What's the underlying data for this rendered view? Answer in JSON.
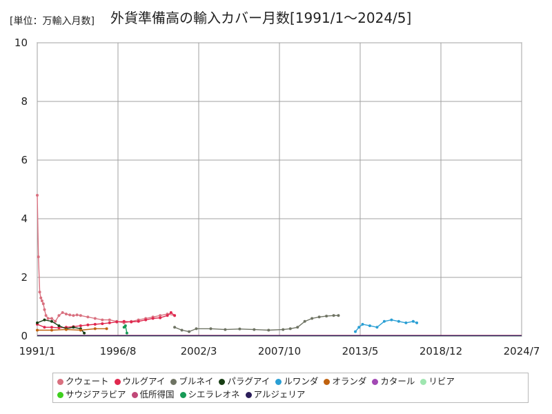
{
  "header": {
    "unit": "[単位：万輸入月数]",
    "title": "外貨準備高の輸入カバー月数[1991/1～2024/5]"
  },
  "chart_data": {
    "type": "line",
    "title": "外貨準備高の輸入カバー月数[1991/1～2024/5]",
    "ylabel": "[単位：万輸入月数]",
    "xlabel": "",
    "ylim": [
      0,
      10
    ],
    "yticks": [
      "0",
      "2",
      "4",
      "6",
      "8",
      "10"
    ],
    "xlim": [
      1991.0,
      2024.5
    ],
    "xticks": [
      {
        "label": "1991/1",
        "x": 1991.0
      },
      {
        "label": "1996/8",
        "x": 1996.583
      },
      {
        "label": "2002/3",
        "x": 2002.167
      },
      {
        "label": "2007/10",
        "x": 2007.75
      },
      {
        "label": "2013/5",
        "x": 2013.333
      },
      {
        "label": "2018/12",
        "x": 2018.917
      },
      {
        "label": "2024/7",
        "x": 2024.5
      }
    ],
    "grid": true,
    "legend_position": "bottom",
    "series": [
      {
        "name": "クウェート",
        "color": "#d9707f",
        "x": [
          1991.0,
          1991.08,
          1991.17,
          1991.25,
          1991.33,
          1991.42,
          1991.5,
          1991.6,
          1991.75,
          1992.0,
          1992.25,
          1992.5,
          1992.75,
          1993.0,
          1993.25,
          1993.5,
          1993.75,
          1994.0,
          1994.5,
          1995.0,
          1995.5,
          1996.0,
          1996.5,
          1997.0,
          1997.5,
          1998.0,
          1998.5,
          1999.0,
          1999.5,
          2000.0,
          2000.5
        ],
        "y": [
          4.8,
          2.7,
          1.5,
          1.3,
          1.2,
          1.1,
          0.9,
          0.7,
          0.6,
          0.6,
          0.5,
          0.7,
          0.8,
          0.75,
          0.72,
          0.7,
          0.72,
          0.7,
          0.65,
          0.6,
          0.55,
          0.55,
          0.5,
          0.45,
          0.5,
          0.55,
          0.6,
          0.65,
          0.7,
          0.75,
          0.7
        ]
      },
      {
        "name": "ウルグアイ",
        "color": "#e0284e",
        "x": [
          1991.0,
          1991.5,
          1992.0,
          1992.5,
          1993.0,
          1993.5,
          1994.0,
          1994.5,
          1995.0,
          1995.5,
          1996.0,
          1996.5,
          1997.0,
          1997.5,
          1998.0,
          1998.5,
          1999.0,
          1999.5,
          2000.0,
          2000.25,
          2000.5
        ],
        "y": [
          0.4,
          0.3,
          0.3,
          0.28,
          0.3,
          0.32,
          0.35,
          0.38,
          0.4,
          0.42,
          0.45,
          0.48,
          0.5,
          0.48,
          0.5,
          0.55,
          0.6,
          0.62,
          0.7,
          0.8,
          0.7
        ]
      },
      {
        "name": "ブルネイ",
        "color": "#6e7363",
        "x": [
          2000.5,
          2001.0,
          2001.5,
          2002.0,
          2003.0,
          2004.0,
          2005.0,
          2006.0,
          2007.0,
          2008.0,
          2008.5,
          2009.0,
          2009.5,
          2010.0,
          2010.5,
          2011.0,
          2011.5,
          2011.83
        ],
        "y": [
          0.3,
          0.2,
          0.15,
          0.25,
          0.25,
          0.22,
          0.24,
          0.22,
          0.2,
          0.22,
          0.25,
          0.3,
          0.5,
          0.6,
          0.65,
          0.68,
          0.7,
          0.7
        ]
      },
      {
        "name": "パラグアイ",
        "color": "#173d13",
        "x": [
          1991.0,
          1991.5,
          1992.0,
          1992.5,
          1993.0,
          1993.5,
          1994.0,
          1994.25
        ],
        "y": [
          0.45,
          0.55,
          0.5,
          0.35,
          0.25,
          0.3,
          0.25,
          0.1
        ]
      },
      {
        "name": "ルワンダ",
        "color": "#2a9fd4",
        "x": [
          2013.0,
          2013.25,
          2013.5,
          2014.0,
          2014.5,
          2015.0,
          2015.5,
          2016.0,
          2016.5,
          2017.0,
          2017.25
        ],
        "y": [
          0.15,
          0.3,
          0.4,
          0.35,
          0.3,
          0.5,
          0.55,
          0.5,
          0.45,
          0.5,
          0.45
        ]
      },
      {
        "name": "オランダ",
        "color": "#c0620f",
        "x": [
          1991.0,
          1992.0,
          1993.0,
          1994.0,
          1995.0,
          1995.8
        ],
        "y": [
          0.2,
          0.2,
          0.22,
          0.2,
          0.25,
          0.25
        ]
      },
      {
        "name": "カタール",
        "color": "#a248b4",
        "x": [
          1991.0,
          2024.5
        ],
        "y": [
          0.01,
          0.01
        ]
      },
      {
        "name": "リビア",
        "color": "#9fe6b0",
        "x": [
          1991.0,
          2024.5
        ],
        "y": [
          0.01,
          0.01
        ]
      },
      {
        "name": "サウジアラビア",
        "color": "#3fcf1f",
        "x": [
          1991.0,
          2024.5
        ],
        "y": [
          0.01,
          0.01
        ]
      },
      {
        "name": "低所得国",
        "color": "#c04878",
        "x": [
          1991.0,
          2024.5
        ],
        "y": [
          0.02,
          0.02
        ]
      },
      {
        "name": "シエラレオネ",
        "color": "#179a56",
        "x": [
          1997.0,
          1997.1,
          1997.2
        ],
        "y": [
          0.3,
          0.35,
          0.1
        ]
      },
      {
        "name": "アルジェリア",
        "color": "#2b1e5a",
        "x": [
          1991.0,
          2024.5
        ],
        "y": [
          0.01,
          0.01
        ]
      }
    ]
  }
}
